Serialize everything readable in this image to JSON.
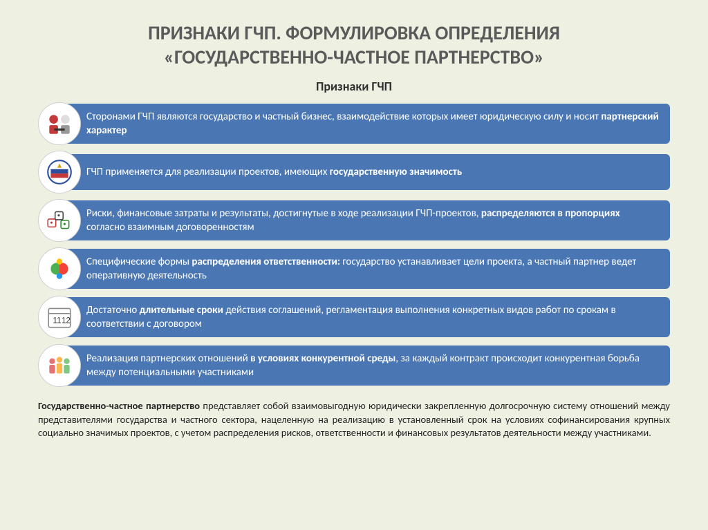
{
  "title_line1": "ПРИЗНАКИ ГЧП. ФОРМУЛИРОВКА ОПРЕДЕЛЕНИЯ",
  "title_line2": "«ГОСУДАРСТВЕННО-ЧАСТНОЕ ПАРТНЕРСТВО»",
  "subtitle": "Признаки ГЧП",
  "bar_color": "#4a77b4",
  "bg_color": "#eef0e2",
  "items": [
    {
      "icon": "handshake",
      "html": "Сторонами ГЧП являются государство и частный бизнес, взаимодействие которых имеет юридическую силу и носит <b>партнерский характер</b>"
    },
    {
      "icon": "emblem",
      "html": "ГЧП применяется для реализации проектов, имеющих <b>государственную значимость</b>"
    },
    {
      "icon": "risk",
      "html": "Риски, финансовые затраты и результаты, достигнутые в ходе реализации ГЧП-проектов, <b>распределяются в пропорциях</b> согласно взаимным договоренностям"
    },
    {
      "icon": "pieces",
      "html": "Специфические формы <b>распределения ответственности:</b> государство устанавливает цели проекта, а частный партнер ведет оперативную деятельность"
    },
    {
      "icon": "calendar",
      "html": "Достаточно <b>длительные сроки</b> действия соглашений, регламентация выполнения конкретных видов работ по срокам в соответствии с договором"
    },
    {
      "icon": "people",
      "html": "Реализация партнерских отношений <b>в условиях конкурентной среды</b>, за каждый контракт происходит конкурентная борьба между потенциальными участниками"
    }
  ],
  "footer_html": "<b>Государственно-частное партнерство</b> представляет собой взаимовыгодную юридически закрепленную долгосрочную систему отношений между представителями государства и частного сектора, нацеленную на реализацию в установленный срок на условиях софинансирования крупных социально значимых проектов, с учетом распределения рисков, ответственности и финансовых результатов деятельности между участниками."
}
